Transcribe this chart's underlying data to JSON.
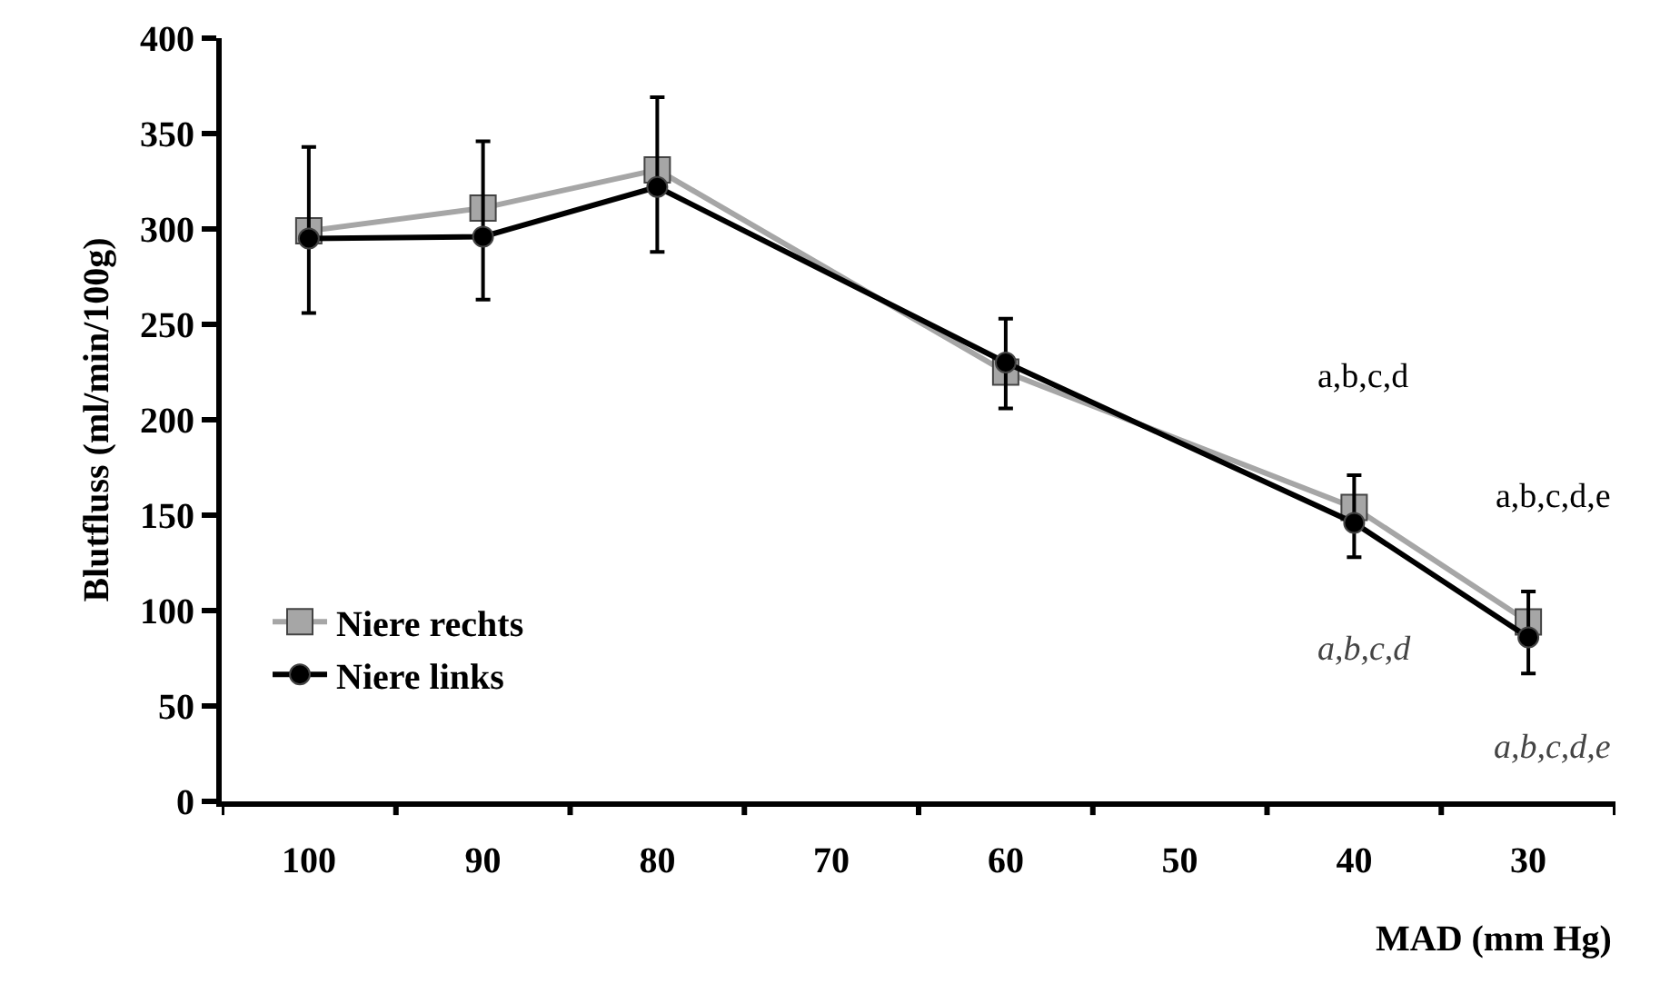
{
  "chart_data": {
    "type": "line",
    "xlabel": "MAD (mm Hg)",
    "ylabel": "Blutfluss (ml/min/100g)",
    "categories": [
      "100",
      "90",
      "80",
      "70",
      "60",
      "50",
      "40",
      "30"
    ],
    "ylim": [
      0,
      400
    ],
    "yticks": [
      0,
      50,
      100,
      150,
      200,
      250,
      300,
      350,
      400
    ],
    "legend": "bottom left",
    "line_style": "solid",
    "series": [
      {
        "name": "Niere rechts",
        "color": "#a6a6a6",
        "marker": "square",
        "values": [
          299,
          311,
          331,
          null,
          225,
          null,
          154,
          94
        ]
      },
      {
        "name": "Niere links",
        "color": "#000000",
        "marker": "circle",
        "values": [
          295,
          296,
          322,
          null,
          230,
          null,
          146,
          86
        ],
        "errors": [
          [
            256,
            343
          ],
          [
            263,
            346
          ],
          [
            288,
            369
          ],
          null,
          [
            206,
            253
          ],
          null,
          [
            128,
            171
          ],
          [
            67,
            110
          ]
        ]
      }
    ],
    "annotations": [
      "a,b,c,d",
      "a,b,c,d,e",
      "a,b,c,d",
      "a,b,c,d,e"
    ]
  }
}
